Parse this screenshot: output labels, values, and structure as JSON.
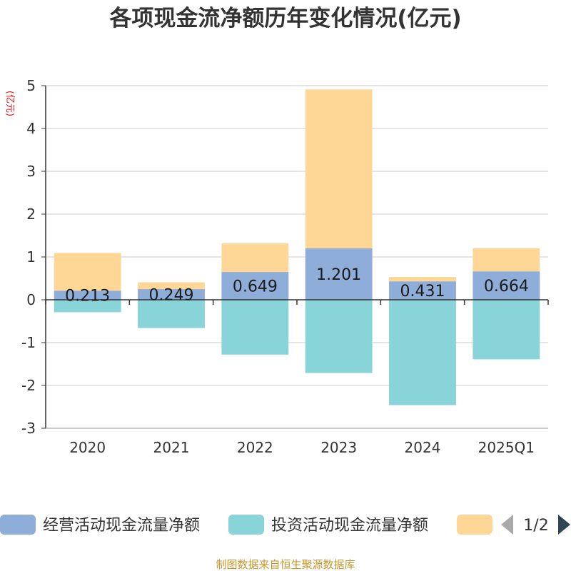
{
  "chart_data": {
    "type": "bar",
    "stacked": true,
    "title": "各项现金流净额历年变化情况(亿元)",
    "ylabel": "(亿元)",
    "categories": [
      "2020",
      "2021",
      "2022",
      "2023",
      "2024",
      "2025Q1"
    ],
    "ylim": [
      -3,
      5
    ],
    "yticks": [
      -3,
      -2,
      -1,
      0,
      1,
      2,
      3,
      4,
      5
    ],
    "grid": true,
    "series": [
      {
        "name": "经营活动现金流量净额",
        "color": "#8fadd9",
        "values": [
          0.213,
          0.249,
          0.649,
          1.201,
          0.431,
          0.664
        ],
        "labels": [
          "0.213",
          "0.249",
          "0.649",
          "1.201",
          "0.431",
          "0.664"
        ]
      },
      {
        "name": "投资活动现金流量净额",
        "color": "#88d4d8",
        "values": [
          -0.29,
          -0.66,
          -1.28,
          -1.71,
          -2.46,
          -1.39
        ]
      },
      {
        "name": "",
        "color": "#fed796",
        "values": [
          0.88,
          0.16,
          0.67,
          3.71,
          0.1,
          0.54
        ]
      }
    ],
    "legend": {
      "position": "bottom",
      "page": "1/2"
    }
  },
  "source": "制图数据来自恒生聚源数据库"
}
